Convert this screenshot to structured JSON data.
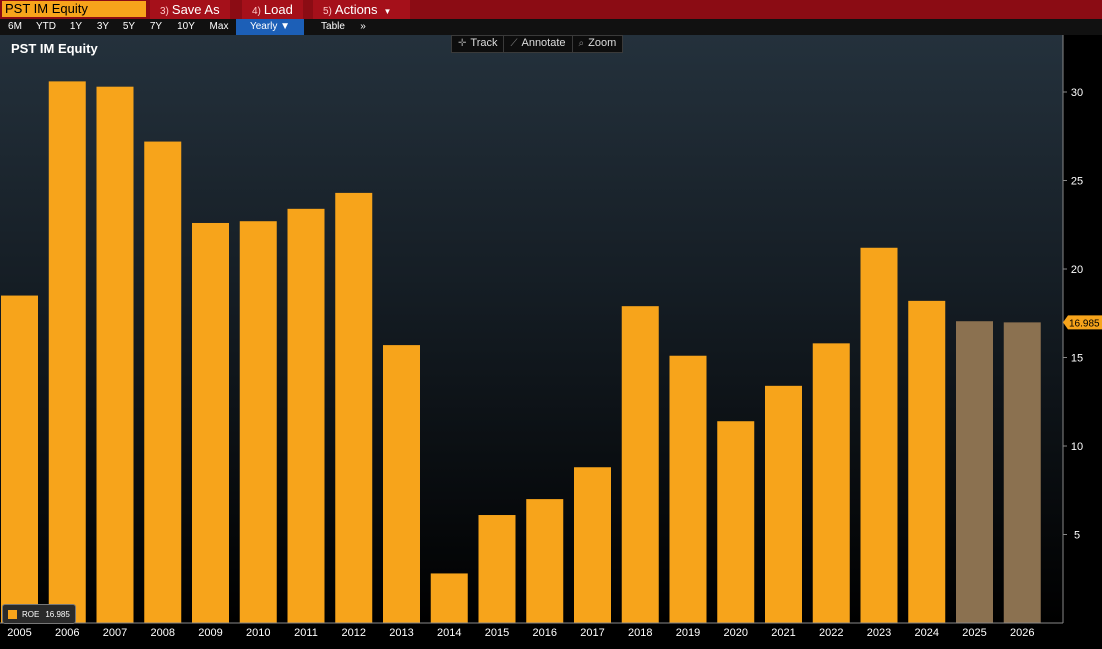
{
  "toolbar": {
    "ticker": "PST IM Equity",
    "save_num": "3)",
    "save_label": "Save As",
    "load_num": "4)",
    "load_label": "Load",
    "actions_num": "5)",
    "actions_label": "Actions"
  },
  "ranges": [
    "6M",
    "YTD",
    "1Y",
    "3Y",
    "5Y",
    "7Y",
    "10Y",
    "Max"
  ],
  "period_label": "Yearly ▼",
  "table_label": "Table",
  "more_label": "»",
  "tools": {
    "track": "Track",
    "annotate": "Annotate",
    "zoom": "Zoom"
  },
  "legend": {
    "label": "ROE",
    "value": "16.985"
  },
  "colors": {
    "actual": "#f7a41b",
    "estimate": "#8b7150",
    "accent": "#8b0c14"
  },
  "chart_data": {
    "type": "bar",
    "title": "PST IM Equity",
    "categories": [
      "2005",
      "2006",
      "2007",
      "2008",
      "2009",
      "2010",
      "2011",
      "2012",
      "2013",
      "2014",
      "2015",
      "2016",
      "2017",
      "2018",
      "2019",
      "2020",
      "2021",
      "2022",
      "2023",
      "2024",
      "2025",
      "2026"
    ],
    "series": [
      {
        "name": "ROE",
        "values": [
          18.5,
          30.6,
          30.3,
          27.2,
          22.6,
          22.7,
          23.4,
          24.3,
          15.7,
          2.8,
          6.1,
          7.0,
          8.8,
          17.9,
          15.1,
          11.4,
          13.4,
          15.8,
          21.2,
          18.2,
          17.05,
          16.985
        ],
        "estimate_from_index": 20
      }
    ],
    "ylim": [
      0,
      33
    ],
    "yticks": [
      5,
      10,
      15,
      20,
      25,
      30
    ],
    "last_value_label": "16.985",
    "ylabel": "",
    "xlabel": "",
    "grid": false
  }
}
